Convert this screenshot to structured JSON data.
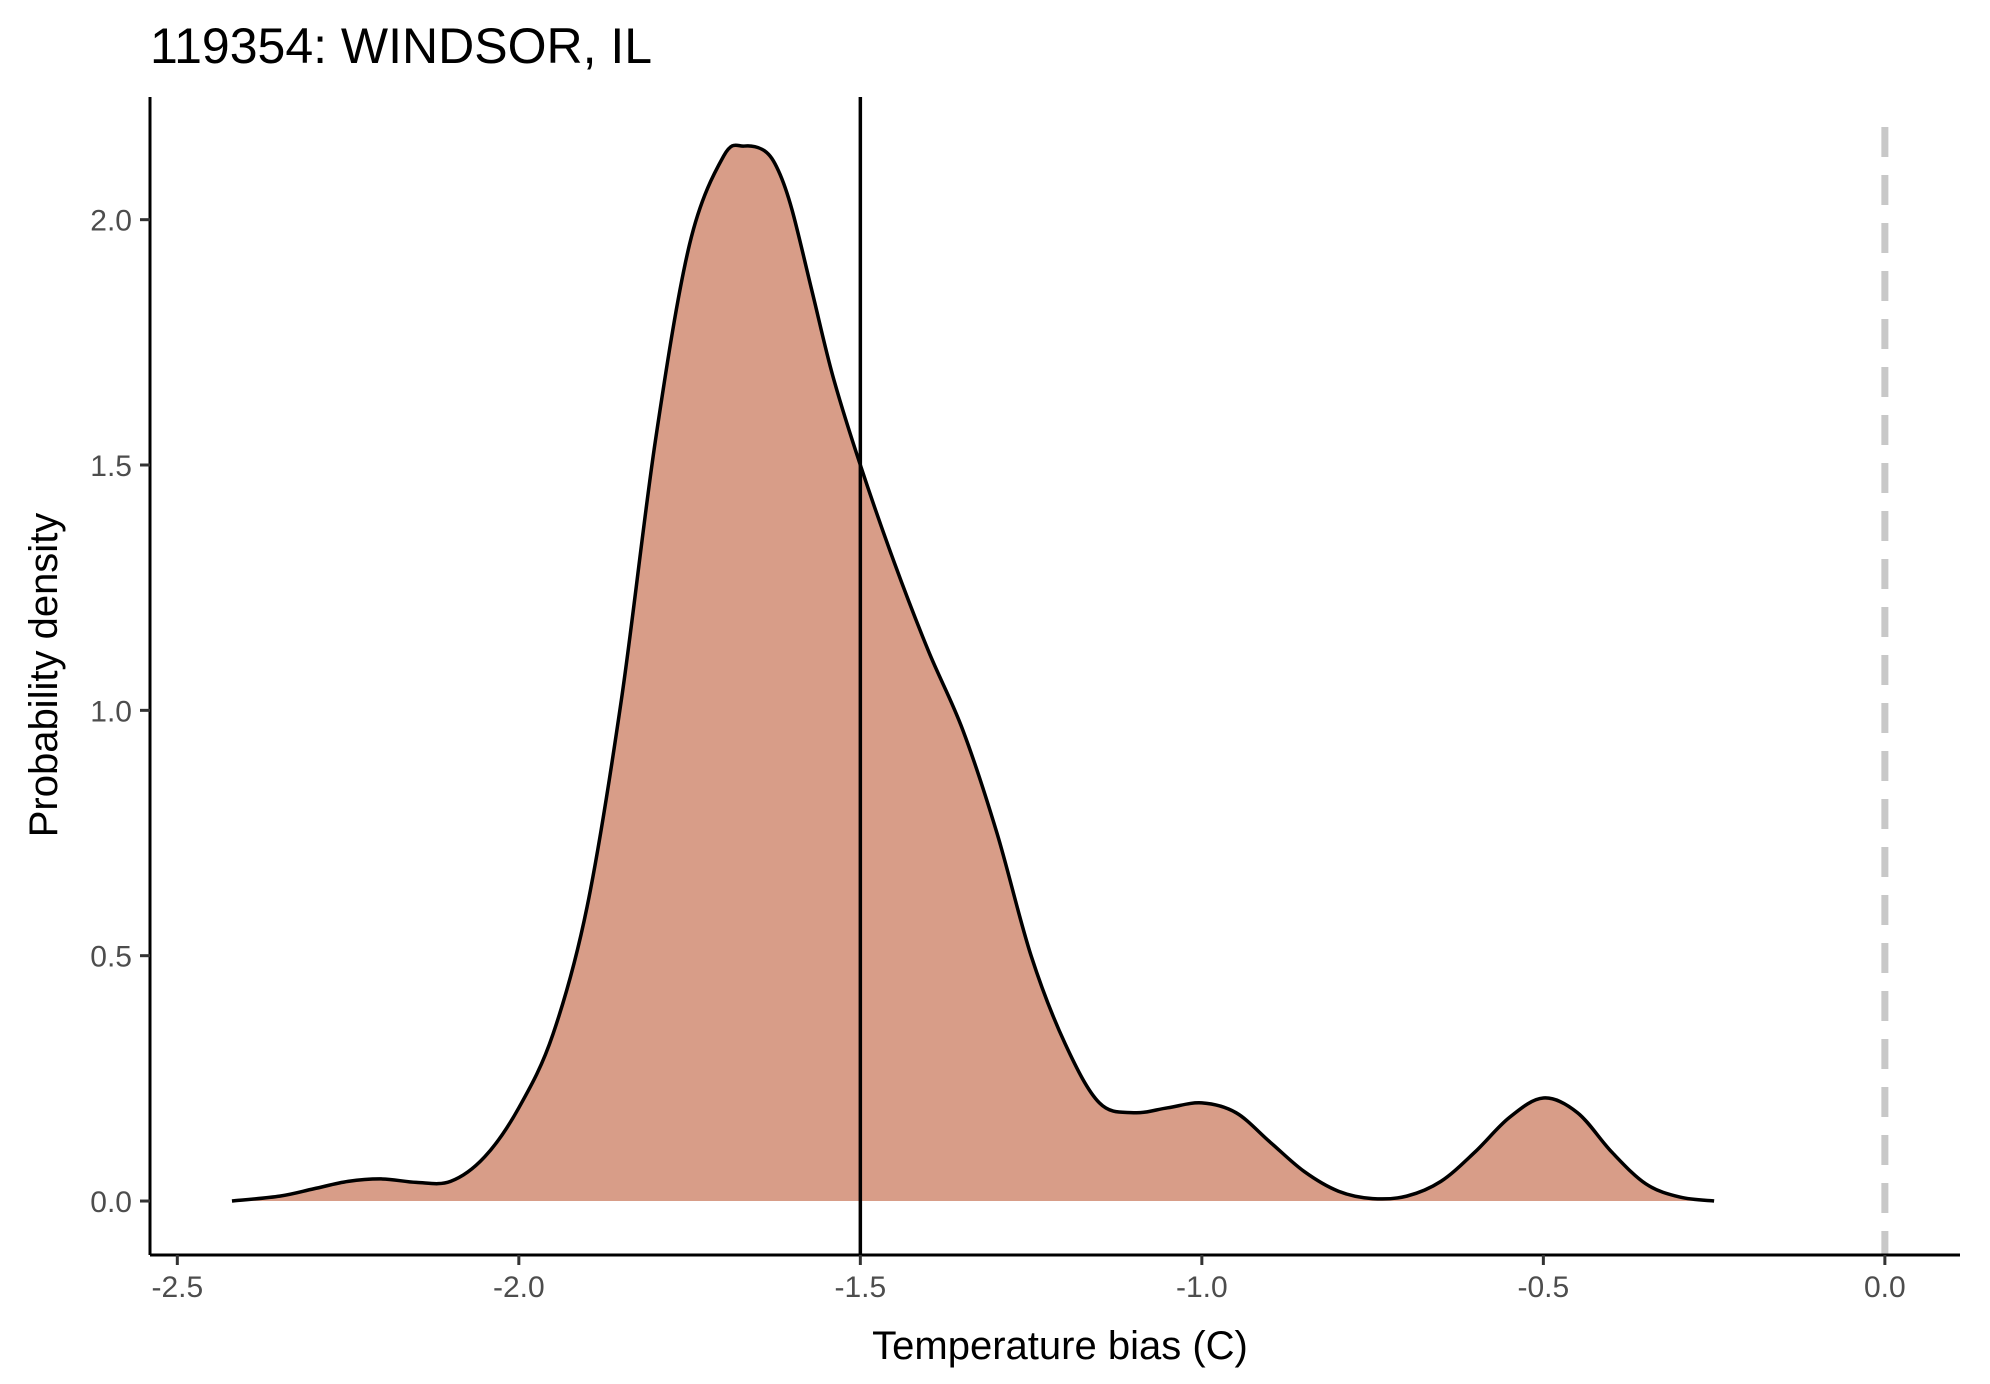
{
  "chart_data": {
    "type": "area",
    "title": "119354: WINDSOR, IL",
    "xlabel": "Temperature bias (C)",
    "ylabel": "Probability density",
    "xlim": [
      -2.54,
      0.11
    ],
    "ylim": [
      -0.11,
      2.25
    ],
    "x_ticks": [
      -2.5,
      -2.0,
      -1.5,
      -1.0,
      -0.5,
      0.0
    ],
    "x_tick_labels": [
      "-2.5",
      "-2.0",
      "-1.5",
      "-1.0",
      "-0.5",
      "0.0"
    ],
    "y_ticks": [
      0.0,
      0.5,
      1.0,
      1.5,
      2.0
    ],
    "y_tick_labels": [
      "0.0",
      "0.5",
      "1.0",
      "1.5",
      "2.0"
    ],
    "grid": false,
    "fill_color": "#d89d88",
    "line_color": "#000000",
    "reference_line_color": "#c8c8c8",
    "series": [
      {
        "x": [
          -2.42,
          -2.35,
          -2.3,
          -2.25,
          -2.2,
          -2.15,
          -2.1,
          -2.05,
          -2.0,
          -1.95,
          -1.9,
          -1.85,
          -1.8,
          -1.75,
          -1.7,
          -1.67,
          -1.64,
          -1.62,
          -1.6,
          -1.57,
          -1.54,
          -1.5,
          -1.45,
          -1.4,
          -1.35,
          -1.3,
          -1.25,
          -1.2,
          -1.15,
          -1.1,
          -1.05,
          -1.0,
          -0.95,
          -0.9,
          -0.85,
          -0.8,
          -0.75,
          -0.7,
          -0.65,
          -0.6,
          -0.55,
          -0.5,
          -0.45,
          -0.4,
          -0.35,
          -0.3,
          -0.25
        ],
        "y": [
          0.0,
          0.01,
          0.025,
          0.04,
          0.045,
          0.038,
          0.04,
          0.09,
          0.19,
          0.34,
          0.6,
          1.02,
          1.55,
          1.95,
          2.13,
          2.15,
          2.14,
          2.1,
          2.02,
          1.85,
          1.68,
          1.5,
          1.3,
          1.12,
          0.96,
          0.75,
          0.5,
          0.32,
          0.2,
          0.18,
          0.19,
          0.2,
          0.18,
          0.12,
          0.06,
          0.02,
          0.005,
          0.01,
          0.04,
          0.1,
          0.17,
          0.21,
          0.18,
          0.1,
          0.035,
          0.008,
          0.0
        ]
      }
    ],
    "vertical_lines": [
      {
        "x": -1.5,
        "style": "solid"
      },
      {
        "x": 0.0,
        "style": "dashed"
      }
    ]
  }
}
